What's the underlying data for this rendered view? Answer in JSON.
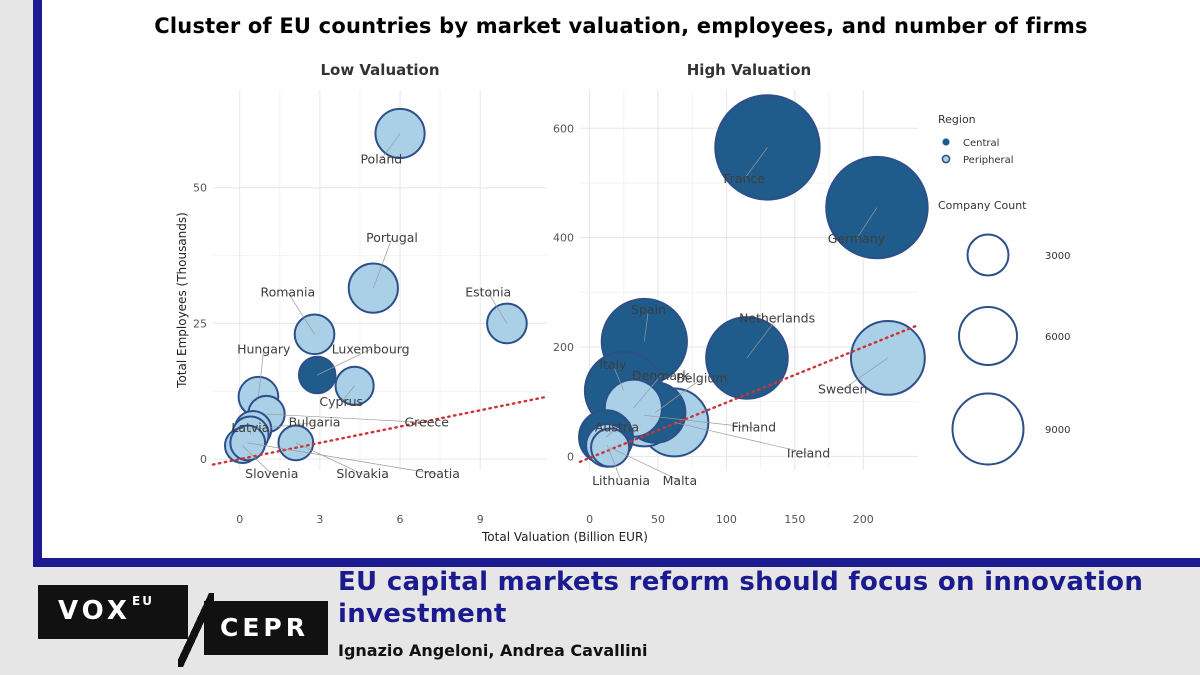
{
  "chart_data": {
    "type": "scatter",
    "title": "Cluster of EU countries by market valuation, employees, and number of firms",
    "xlabel": "Total Valuation (Billion EUR)",
    "ylabel": "Total Employees (Thousands)",
    "colors": {
      "Central": "#1f5c8b",
      "Peripheral": "#a9d0e6",
      "stroke": "#2d4f8a",
      "trend": "#cc3333"
    },
    "legend": {
      "region_title": "Region",
      "regions": [
        "Central",
        "Peripheral"
      ],
      "size_title": "Company Count",
      "sizes": [
        3000,
        6000,
        9000
      ],
      "size_labels": [
        "3000",
        "6000",
        "9000"
      ],
      "placement": "right"
    },
    "panels": [
      {
        "title": "Low Valuation",
        "xlim": [
          -1,
          11.5
        ],
        "ylim": [
          -2,
          68
        ],
        "xticks": [
          0,
          3,
          6,
          9
        ],
        "xtick_labels": [
          "0",
          "3",
          "6",
          "9"
        ],
        "yticks": [
          0,
          25,
          50
        ],
        "ytick_labels": [
          "0",
          "25",
          "50"
        ],
        "trend": [
          [
            -1,
            -1
          ],
          [
            11.5,
            11.5
          ]
        ],
        "points": [
          {
            "name": "Poland",
            "x": 6.0,
            "y": 60.0,
            "region": "Peripheral",
            "count": 2000,
            "lx": 5.3,
            "ly": 54.5
          },
          {
            "name": "Portugal",
            "x": 5.0,
            "y": 31.5,
            "region": "Peripheral",
            "count": 2000,
            "lx": 5.7,
            "ly": 40.0
          },
          {
            "name": "Estonia",
            "x": 10.0,
            "y": 25.0,
            "region": "Peripheral",
            "count": 1300,
            "lx": 9.3,
            "ly": 30.0
          },
          {
            "name": "Romania",
            "x": 2.8,
            "y": 23.0,
            "region": "Peripheral",
            "count": 1300,
            "lx": 1.8,
            "ly": 30.0
          },
          {
            "name": "Hungary",
            "x": 0.7,
            "y": 11.5,
            "region": "Peripheral",
            "count": 1300,
            "lx": 0.9,
            "ly": 19.5
          },
          {
            "name": "Luxembourg",
            "x": 2.9,
            "y": 15.5,
            "region": "Central",
            "count": 1100,
            "lx": 4.9,
            "ly": 19.5
          },
          {
            "name": "Cyprus",
            "x": 4.3,
            "y": 13.5,
            "region": "Peripheral",
            "count": 1200,
            "lx": 3.8,
            "ly": 9.8
          },
          {
            "name": "Greece",
            "x": 1.0,
            "y": 8.3,
            "region": "Peripheral",
            "count": 1100,
            "lx": 7.0,
            "ly": 6.0
          },
          {
            "name": "Bulgaria",
            "x": 0.5,
            "y": 5.5,
            "region": "Peripheral",
            "count": 1100,
            "lx": 2.8,
            "ly": 6.0
          },
          {
            "name": "Latvia",
            "x": 0.4,
            "y": 4.5,
            "region": "Peripheral",
            "count": 1100,
            "lx": 0.4,
            "ly": 5.0
          },
          {
            "name": "Slovenia",
            "x": 0.1,
            "y": 2.5,
            "region": "Peripheral",
            "count": 1000,
            "lx": 1.2,
            "ly": -3.5
          },
          {
            "name": "Slovakia",
            "x": 2.1,
            "y": 3.0,
            "region": "Peripheral",
            "count": 1000,
            "lx": 4.6,
            "ly": -3.5
          },
          {
            "name": "Croatia",
            "x": 0.3,
            "y": 3.0,
            "region": "Peripheral",
            "count": 1000,
            "lx": 7.4,
            "ly": -3.5
          }
        ]
      },
      {
        "title": "High Valuation",
        "xlim": [
          -7,
          240
        ],
        "ylim": [
          -25,
          670
        ],
        "xticks": [
          0,
          50,
          100,
          150,
          200
        ],
        "xtick_labels": [
          "0",
          "50",
          "100",
          "150",
          "200"
        ],
        "yticks": [
          0,
          200,
          400,
          600
        ],
        "ytick_labels": [
          "0",
          "200",
          "400",
          "600"
        ],
        "trend": [
          [
            -7,
            -10
          ],
          [
            240,
            240
          ]
        ],
        "points": [
          {
            "name": "France",
            "x": 130,
            "y": 565,
            "region": "Central",
            "count": 9000,
            "lx": 113,
            "ly": 500
          },
          {
            "name": "Germany",
            "x": 210,
            "y": 455,
            "region": "Central",
            "count": 8500,
            "lx": 195,
            "ly": 390
          },
          {
            "name": "Sweden",
            "x": 218,
            "y": 180,
            "region": "Peripheral",
            "count": 4500,
            "lx": 185,
            "ly": 115
          },
          {
            "name": "Spain",
            "x": 40,
            "y": 210,
            "region": "Central",
            "count": 6000,
            "lx": 43,
            "ly": 260
          },
          {
            "name": "Netherlands",
            "x": 115,
            "y": 180,
            "region": "Central",
            "count": 5500,
            "lx": 137,
            "ly": 245
          },
          {
            "name": "Italy",
            "x": 25,
            "y": 120,
            "region": "Central",
            "count": 5000,
            "lx": 17,
            "ly": 160
          },
          {
            "name": "Denmark",
            "x": 32,
            "y": 88,
            "region": "Peripheral",
            "count": 2700,
            "lx": 52,
            "ly": 140
          },
          {
            "name": "Belgium",
            "x": 48,
            "y": 80,
            "region": "Central",
            "count": 3000,
            "lx": 82,
            "ly": 135
          },
          {
            "name": "Finland",
            "x": 40,
            "y": 75,
            "region": "Peripheral",
            "count": 3200,
            "lx": 120,
            "ly": 45
          },
          {
            "name": "Ireland",
            "x": 62,
            "y": 62,
            "region": "Peripheral",
            "count": 3800,
            "lx": 160,
            "ly": -2
          },
          {
            "name": "Austria",
            "x": 12,
            "y": 35,
            "region": "Central",
            "count": 2400,
            "lx": 20,
            "ly": 45
          },
          {
            "name": "Lithuania",
            "x": 13,
            "y": 20,
            "region": "Peripheral",
            "count": 1500,
            "lx": 23,
            "ly": -52
          },
          {
            "name": "Malta",
            "x": 15,
            "y": 16,
            "region": "Peripheral",
            "count": 1200,
            "lx": 66,
            "ly": -52
          }
        ]
      }
    ]
  },
  "footer": {
    "logo_vox": "VOX",
    "logo_eu": "EU",
    "logo_cepr": "CEPR",
    "headline": "EU capital markets reform should focus on innovation investment",
    "authors": "Ignazio Angeloni, Andrea Cavallini"
  }
}
